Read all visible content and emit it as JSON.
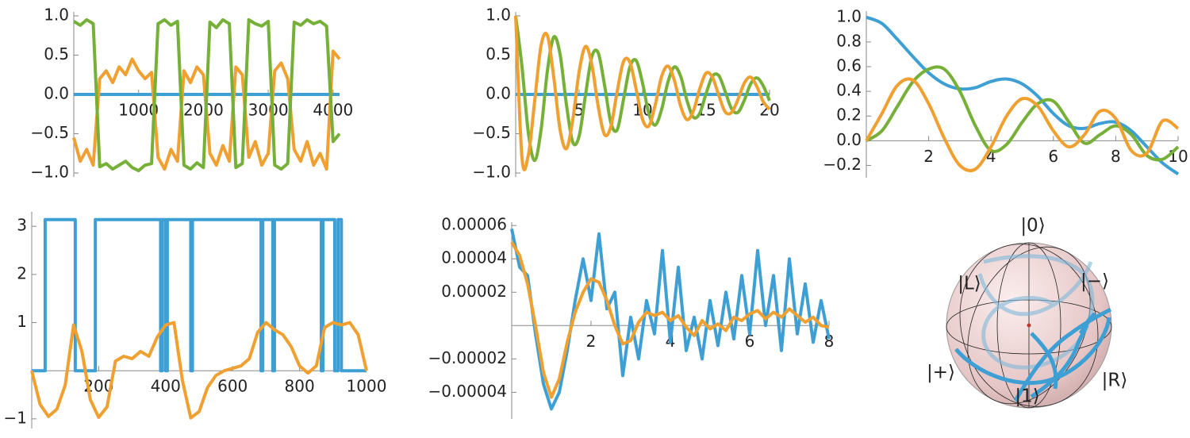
{
  "chart_data": [
    {
      "type": "line",
      "x": [
        0,
        100,
        200,
        300,
        400,
        500,
        600,
        700,
        800,
        900,
        1000,
        1100,
        1200,
        1300,
        1400,
        1500,
        1600,
        1700,
        1800,
        1900,
        2000,
        2100,
        2200,
        2300,
        2400,
        2500,
        2600,
        2700,
        2800,
        2900,
        3000,
        3100,
        3200,
        3300,
        3400,
        3500,
        3600,
        3700,
        3800,
        3900,
        4000,
        4100
      ],
      "xlim": [
        0,
        4100
      ],
      "ylim": [
        -1.05,
        1.05
      ],
      "xticks": [
        1000,
        2000,
        3000,
        4000
      ],
      "yticks": [
        {
          "value": 1,
          "label": "1.0"
        },
        0.5,
        {
          "value": 0,
          "label": "0.0"
        },
        {
          "value": -0.5,
          "label": "−0.5"
        },
        {
          "value": -1,
          "label": "−1.0"
        }
      ],
      "series": [
        {
          "color": "#3d9fd4",
          "values": [
            0,
            0,
            0,
            0,
            0,
            0,
            0,
            0,
            0,
            0,
            0,
            0,
            0,
            0,
            0,
            0,
            0,
            0,
            0,
            0,
            0,
            0,
            0,
            0,
            0,
            0,
            0,
            0,
            0,
            0,
            0,
            0,
            0,
            0,
            0,
            0,
            0,
            0,
            0,
            0,
            0,
            0
          ]
        },
        {
          "color": "#f0a030",
          "values": [
            -0.55,
            -0.85,
            -0.7,
            -0.9,
            0.2,
            0.3,
            0.15,
            0.35,
            0.25,
            0.45,
            0.3,
            0.2,
            0.28,
            -0.8,
            -0.95,
            -0.7,
            -0.85,
            0.3,
            0.15,
            0.35,
            0.25,
            -0.75,
            -0.9,
            -0.65,
            -0.85,
            0.35,
            0.25,
            -0.8,
            -0.6,
            -0.9,
            -0.75,
            0.3,
            0.4,
            0.2,
            -0.7,
            -0.85,
            -0.6,
            -0.9,
            -0.75,
            -0.95,
            0.55,
            0.45
          ]
        },
        {
          "color": "#76b038",
          "values": [
            0.93,
            0.88,
            0.95,
            0.9,
            -0.92,
            -0.88,
            -0.95,
            -0.9,
            -0.85,
            -0.93,
            -0.97,
            -0.9,
            -0.88,
            0.9,
            0.95,
            0.88,
            0.93,
            -0.9,
            -0.95,
            -0.87,
            -0.93,
            0.92,
            0.85,
            0.95,
            0.9,
            -0.93,
            -0.88,
            0.95,
            0.9,
            0.87,
            0.93,
            -0.9,
            -0.95,
            -0.88,
            0.92,
            0.88,
            0.95,
            0.9,
            0.93,
            0.87,
            -0.6,
            -0.5
          ]
        }
      ]
    },
    {
      "type": "line",
      "x": [
        0,
        0.5,
        1,
        1.5,
        2,
        2.5,
        3,
        3.5,
        4,
        4.5,
        5,
        5.5,
        6,
        6.5,
        7,
        7.5,
        8,
        8.5,
        9,
        9.5,
        10,
        10.5,
        11,
        11.5,
        12,
        12.5,
        13,
        13.5,
        14,
        14.5,
        15,
        15.5,
        16,
        16.5,
        17,
        17.5,
        18,
        18.5,
        19,
        19.5,
        20
      ],
      "xlim": [
        0,
        20
      ],
      "ylim": [
        -1.05,
        1.05
      ],
      "xticks": [
        5,
        10,
        15,
        20
      ],
      "yticks": [
        {
          "value": 1,
          "label": "1.0"
        },
        0.5,
        {
          "value": 0,
          "label": "0.0"
        },
        {
          "value": -0.5,
          "label": "−0.5"
        },
        {
          "value": -1,
          "label": "−1.0"
        }
      ],
      "series": [
        {
          "color": "#3d9fd4",
          "values": [
            0,
            0,
            0,
            0,
            0,
            0,
            0,
            0,
            0,
            0,
            0,
            0,
            0,
            0,
            0,
            0,
            0,
            0,
            0,
            0,
            0,
            0,
            0,
            0,
            0,
            0,
            0,
            0,
            0,
            0,
            0,
            0,
            0,
            0,
            0,
            0,
            0,
            0,
            0,
            0,
            0
          ]
        },
        {
          "color": "#76b038",
          "values": [
            1,
            0.35,
            -0.49,
            -0.84,
            -0.45,
            0.3,
            0.73,
            0.51,
            -0.13,
            -0.61,
            -0.53,
            -0.01,
            0.48,
            0.53,
            0.12,
            -0.36,
            -0.45,
            -0.06,
            0.35,
            0.43,
            0.14,
            -0.25,
            -0.39,
            -0.19,
            0.16,
            0.35,
            0.23,
            -0.08,
            -0.29,
            -0.24,
            0.01,
            0.23,
            0.24,
            0.04,
            -0.18,
            -0.23,
            -0.08,
            0.13,
            0.21,
            0.11,
            -0.08
          ]
        },
        {
          "color": "#f0a030",
          "values": [
            1,
            -0.81,
            -0.77,
            -0.08,
            0.62,
            0.75,
            0.22,
            -0.45,
            -0.69,
            -0.32,
            0.29,
            0.61,
            0.38,
            -0.15,
            -0.51,
            -0.41,
            0.04,
            0.42,
            0.41,
            0.06,
            -0.32,
            -0.4,
            -0.13,
            0.23,
            0.36,
            0.18,
            -0.15,
            -0.32,
            -0.21,
            0.07,
            0.27,
            0.22,
            -0.01,
            -0.22,
            -0.23,
            -0.07,
            0.14,
            0.22,
            0.1,
            -0.09,
            -0.19
          ]
        }
      ]
    },
    {
      "type": "line",
      "x": [
        0,
        0.5,
        1,
        1.5,
        2,
        2.5,
        3,
        3.5,
        4,
        4.5,
        5,
        5.5,
        6,
        6.5,
        7,
        7.5,
        8,
        8.5,
        9,
        9.5,
        10
      ],
      "xlim": [
        0,
        10
      ],
      "ylim": [
        -0.3,
        1.05
      ],
      "xticks": [
        2,
        4,
        6,
        8,
        10
      ],
      "yticks": [
        {
          "value": 1,
          "label": "1.0"
        },
        0.8,
        0.6,
        0.4,
        0.2,
        {
          "value": 0,
          "label": "0.0"
        },
        {
          "value": -0.2,
          "label": "−0.2"
        }
      ],
      "series": [
        {
          "color": "#3d9fd4",
          "values": [
            1,
            0.95,
            0.82,
            0.68,
            0.55,
            0.46,
            0.42,
            0.43,
            0.48,
            0.5,
            0.46,
            0.36,
            0.22,
            0.12,
            0.1,
            0.14,
            0.15,
            0.08,
            -0.05,
            -0.18,
            -0.27
          ]
        },
        {
          "color": "#76b038",
          "values": [
            0,
            0.08,
            0.28,
            0.48,
            0.58,
            0.58,
            0.4,
            0.12,
            -0.08,
            -0.03,
            0.15,
            0.3,
            0.32,
            0.15,
            -0.02,
            0.05,
            0.12,
            0.05,
            -0.12,
            -0.15,
            -0.05
          ]
        },
        {
          "color": "#f0a030",
          "values": [
            0,
            0.22,
            0.45,
            0.49,
            0.3,
            0.02,
            -0.2,
            -0.23,
            -0.05,
            0.2,
            0.34,
            0.28,
            0.08,
            -0.05,
            0.05,
            0.24,
            0.18,
            -0.08,
            -0.1,
            0.16,
            0.1
          ]
        }
      ]
    },
    {
      "type": "line",
      "xlim": [
        0,
        1000
      ],
      "ylim": [
        -1.2,
        3.3
      ],
      "xticks": [
        200,
        400,
        600,
        800,
        1000
      ],
      "yticks": [
        3,
        2,
        1,
        {
          "value": -1,
          "label": "−1"
        }
      ],
      "series": [
        {
          "color": "#3d9fd4",
          "x": [
            0,
            40,
            40,
            130,
            130,
            190,
            190,
            385,
            385,
            390,
            390,
            400,
            400,
            405,
            405,
            475,
            475,
            480,
            480,
            685,
            685,
            690,
            690,
            720,
            720,
            725,
            725,
            865,
            865,
            870,
            870,
            905,
            905,
            915,
            915,
            925,
            925,
            1000
          ],
          "values": [
            0,
            0,
            3.14,
            3.14,
            0,
            0,
            3.14,
            3.14,
            0,
            0,
            3.14,
            3.14,
            0,
            0,
            3.14,
            3.14,
            0,
            0,
            3.14,
            3.14,
            0,
            0,
            3.14,
            3.14,
            0,
            0,
            3.14,
            3.14,
            0,
            0,
            3.14,
            3.14,
            0,
            0,
            3.14,
            3.14,
            0,
            0
          ]
        },
        {
          "color": "#f0a030",
          "x": [
            0,
            25,
            50,
            75,
            100,
            125,
            150,
            175,
            200,
            225,
            250,
            275,
            300,
            325,
            350,
            375,
            400,
            425,
            450,
            475,
            500,
            525,
            550,
            575,
            600,
            625,
            650,
            675,
            700,
            725,
            750,
            775,
            800,
            825,
            850,
            875,
            900,
            925,
            950,
            975,
            1000
          ],
          "values": [
            0,
            -0.7,
            -0.95,
            -0.8,
            -0.3,
            0.95,
            0.4,
            -0.6,
            -0.97,
            -0.75,
            0.2,
            0.3,
            0.25,
            0.4,
            0.3,
            0.7,
            0.95,
            1.0,
            -0.2,
            -0.98,
            -0.85,
            -0.35,
            -0.1,
            0,
            0.05,
            0.1,
            0.25,
            0.8,
            1.0,
            0.85,
            0.75,
            0.5,
            0.1,
            -0.05,
            0.1,
            0.9,
            1.0,
            0.95,
            1.0,
            0.75,
            0
          ]
        }
      ]
    },
    {
      "type": "line",
      "x": [
        0,
        0.2,
        0.4,
        0.6,
        0.8,
        1,
        1.2,
        1.4,
        1.6,
        1.8,
        2,
        2.2,
        2.4,
        2.6,
        2.8,
        3,
        3.2,
        3.4,
        3.6,
        3.8,
        4,
        4.2,
        4.4,
        4.6,
        4.8,
        5,
        5.2,
        5.4,
        5.6,
        5.8,
        6,
        6.2,
        6.4,
        6.6,
        6.8,
        7,
        7.2,
        7.4,
        7.6,
        7.8,
        8
      ],
      "xlim": [
        0,
        8
      ],
      "ylim": [
        -5.6e-05,
        6.2e-05
      ],
      "xticks": [
        2,
        4,
        6,
        8
      ],
      "yticks": [
        6e-05,
        4e-05,
        2e-05,
        {
          "value": -2e-05,
          "label": "−0.00002"
        },
        {
          "value": -4e-05,
          "label": "−0.00004"
        }
      ],
      "series": [
        {
          "color": "#3d9fd4",
          "values": [
            5.8e-05,
            3.5e-05,
            3e-05,
            -5e-06,
            -3.5e-05,
            -5e-05,
            -4e-05,
            -1.5e-05,
            1.5e-05,
            4e-05,
            1.5e-05,
            5.5e-05,
            1e-05,
            2e-05,
            -3e-05,
            5e-06,
            -2e-05,
            1.5e-05,
            -5e-06,
            4.5e-05,
            -1e-05,
            3.5e-05,
            -1.5e-05,
            5e-06,
            -2e-05,
            1.5e-05,
            -1.2e-05,
            2e-05,
            -8e-06,
            3e-05,
            -5e-06,
            4.5e-05,
            0,
            3e-05,
            -1.5e-05,
            4e-05,
            -5e-06,
            2.5e-05,
            -1e-05,
            1.5e-05,
            -8e-06
          ]
        },
        {
          "color": "#f0a030",
          "values": [
            5e-05,
            4.2e-05,
            2.5e-05,
            0,
            -2.8e-05,
            -4.3e-05,
            -3.2e-05,
            -1e-05,
            8e-06,
            2e-05,
            2.8e-05,
            2.6e-05,
            1.5e-05,
            0,
            -1.1e-05,
            -9e-06,
            2e-06,
            8e-06,
            6e-06,
            8e-06,
            3e-06,
            6e-06,
            -1e-06,
            -6e-06,
            3e-06,
            -2e-06,
            1e-06,
            -3e-06,
            5e-06,
            3e-06,
            7e-06,
            9e-06,
            4e-06,
            8e-06,
            5e-06,
            1e-05,
            6e-06,
            2e-06,
            5e-06,
            0,
            -1e-06
          ]
        }
      ]
    }
  ],
  "bloch_sphere": {
    "labels": [
      "|0⟩",
      "|1⟩",
      "|L⟩",
      "|R⟩",
      "|+⟩",
      "|−⟩"
    ]
  }
}
